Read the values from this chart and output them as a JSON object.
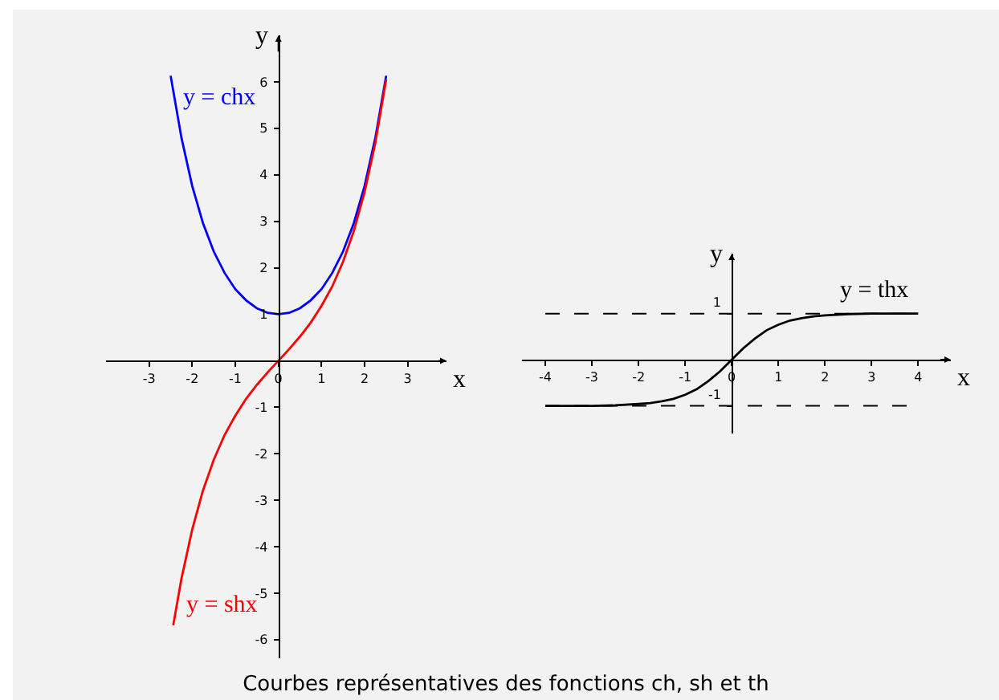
{
  "chart_data": [
    {
      "type": "line",
      "xlabel": "x",
      "ylabel": "y",
      "xlim": [
        -4,
        3.9
      ],
      "ylim": [
        -6.4,
        7.0
      ],
      "xticks": [
        -3,
        -2,
        -1,
        0,
        1,
        2,
        3
      ],
      "yticks": [
        -6,
        -5,
        -4,
        -3,
        -2,
        -1,
        1,
        2,
        3,
        4,
        5,
        6
      ],
      "legend": false,
      "marker": "none",
      "line_style": "solid",
      "series": [
        {
          "name": "y = chx",
          "color": "#0000ff",
          "x": [
            -2.5,
            -2.25,
            -2,
            -1.75,
            -1.5,
            -1.25,
            -1,
            -0.75,
            -0.5,
            -0.25,
            0,
            0.25,
            0.5,
            0.75,
            1,
            1.25,
            1.5,
            1.75,
            2,
            2.25,
            2.5
          ],
          "values": [
            6.13,
            4.8,
            3.76,
            2.96,
            2.35,
            1.89,
            1.54,
            1.3,
            1.13,
            1.03,
            1,
            1.03,
            1.13,
            1.3,
            1.54,
            1.89,
            2.35,
            2.96,
            3.76,
            4.8,
            6.13
          ]
        },
        {
          "name": "y = shx",
          "color": "#ff0000",
          "x": [
            -2.44,
            -2.25,
            -2,
            -1.75,
            -1.5,
            -1.25,
            -1,
            -0.75,
            -0.5,
            -0.25,
            0,
            0.25,
            0.5,
            0.75,
            1,
            1.25,
            1.5,
            1.75,
            2,
            2.25,
            2.5
          ],
          "values": [
            -5.69,
            -4.69,
            -3.63,
            -2.79,
            -2.13,
            -1.6,
            -1.18,
            -0.82,
            -0.52,
            -0.25,
            0,
            0.25,
            0.52,
            0.82,
            1.18,
            1.6,
            2.13,
            2.79,
            3.63,
            4.69,
            6.05
          ]
        }
      ],
      "annotations": [
        "Courbes représentatives des fonctions ch, sh et th"
      ]
    },
    {
      "type": "line",
      "xlabel": "x",
      "ylabel": "y",
      "xlim": [
        -4.5,
        4.7
      ],
      "ylim": [
        -1.6,
        2.3
      ],
      "xticks": [
        -4,
        -3,
        -2,
        -1,
        0,
        1,
        2,
        3,
        4
      ],
      "yticks": [
        -1,
        1
      ],
      "legend": false,
      "marker": "none",
      "line_style": "solid",
      "series": [
        {
          "name": "y = thx",
          "color": "#000000",
          "x": [
            -4,
            -3,
            -2.5,
            -2,
            -1.75,
            -1.5,
            -1.25,
            -1,
            -0.75,
            -0.5,
            -0.25,
            0,
            0.25,
            0.5,
            0.75,
            1,
            1.25,
            1.5,
            1.75,
            2,
            2.5,
            3,
            4
          ],
          "values": [
            -1,
            -1,
            -0.99,
            -0.96,
            -0.94,
            -0.9,
            -0.85,
            -0.76,
            -0.64,
            -0.46,
            -0.25,
            0,
            0.25,
            0.46,
            0.64,
            0.76,
            0.85,
            0.9,
            0.94,
            0.96,
            0.99,
            1,
            1
          ]
        }
      ],
      "ref_lines": [
        {
          "axis": "y",
          "value": 1,
          "line_style": "dashed",
          "color": "#000000"
        },
        {
          "axis": "y",
          "value": -1,
          "line_style": "dashed",
          "color": "#000000"
        }
      ]
    }
  ]
}
